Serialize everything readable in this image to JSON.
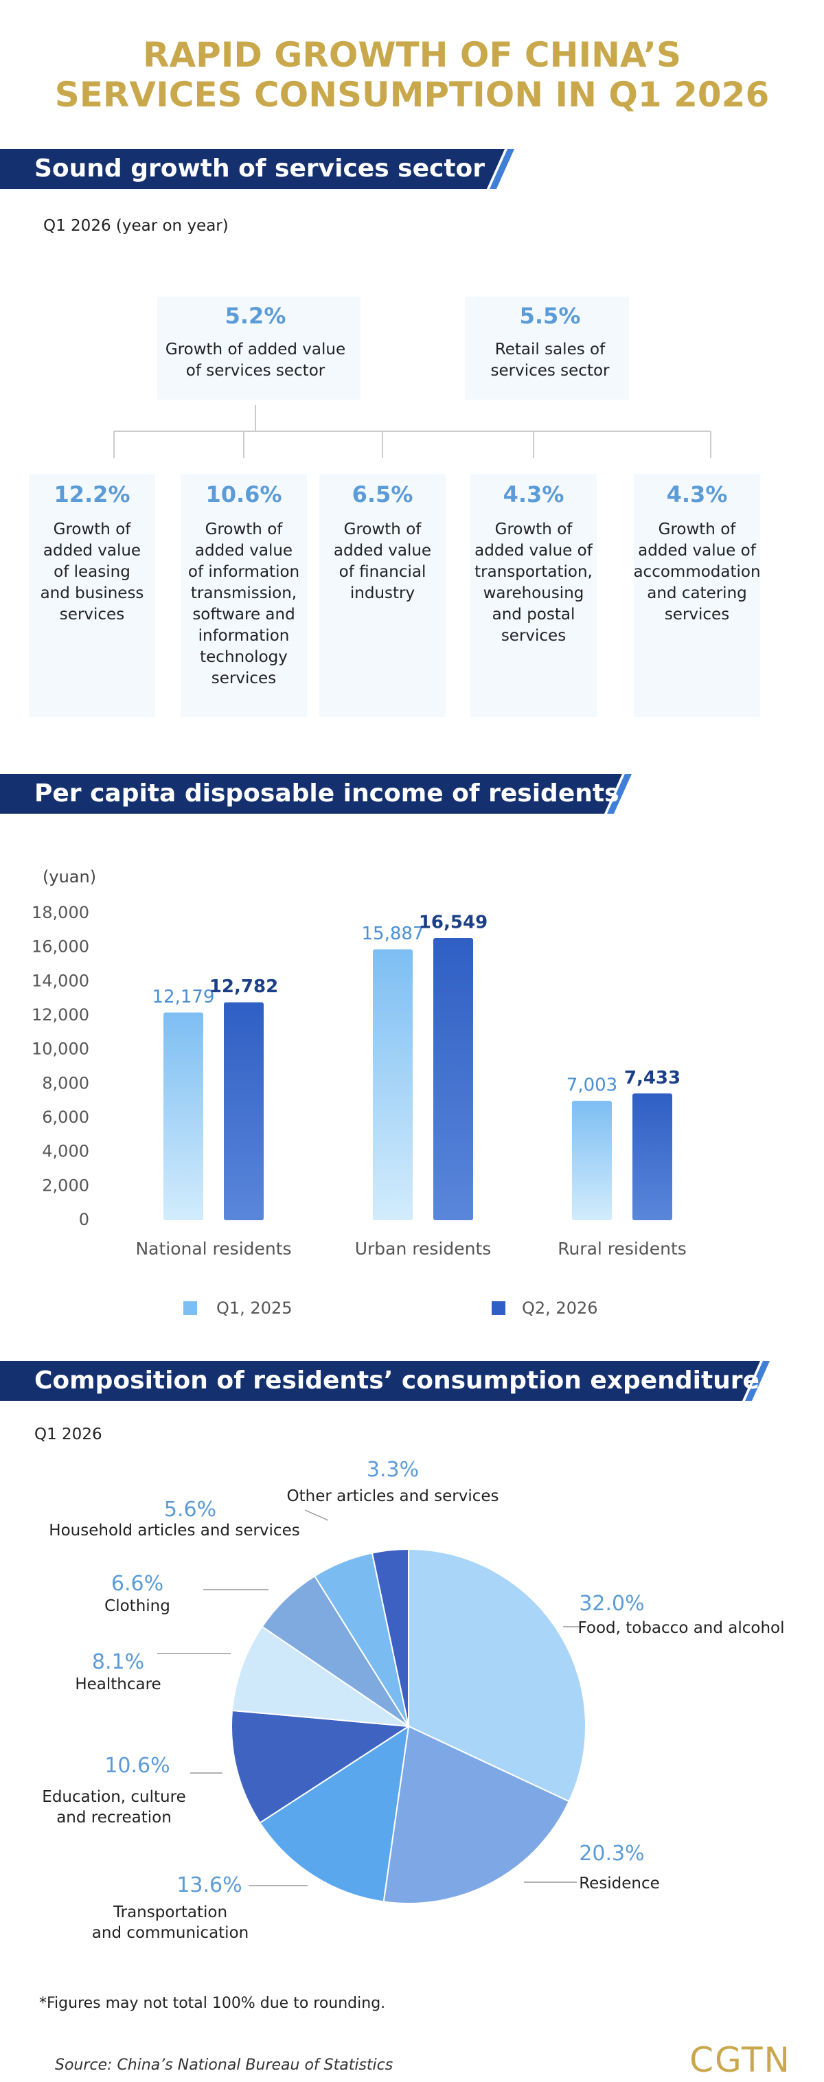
{
  "header": {
    "title_lines": [
      "RAPID GROWTH OF CHINA’S",
      "SERVICES CONSUMPTION IN Q1 2026"
    ]
  },
  "services": {
    "banner": "Sound growth of services sector",
    "subtitle": "Q1 2026 (year on year)",
    "main": [
      {
        "value": "5.2%",
        "label": "Growth of added value\nof services sector"
      },
      {
        "value": "5.5%",
        "label": "Retail sales of\nservices sector"
      }
    ],
    "items": [
      {
        "value": "12.2%",
        "label": "Growth of\nadded value\nof leasing\nand business\nservices"
      },
      {
        "value": "10.6%",
        "label": "Growth of\nadded value\nof information\ntransmission,\nsoftware and\ninformation\ntechnology\nservices"
      },
      {
        "value": "6.5%",
        "label": "Growth of\nadded value\nof financial\nindustry"
      },
      {
        "value": "4.3%",
        "label": "Growth of\nadded value of\ntransportation,\nwarehousing\nand postal\nservices"
      },
      {
        "value": "4.3%",
        "label": "Growth of\nadded value of\naccommodation\nand catering\nservices"
      }
    ]
  },
  "chart_data": [
    {
      "type": "bar",
      "title": "Per capita disposable income of residents",
      "y_label": "(yuan)",
      "categories": [
        "National residents",
        "Urban residents",
        "Rural residents"
      ],
      "series": [
        {
          "name": "Q1, 2025",
          "color": "#7dbef3",
          "values": [
            12179,
            15887,
            7003
          ],
          "value_labels": [
            "12,179",
            "15,887",
            "7,003"
          ]
        },
        {
          "name": "Q2, 2026",
          "color": "#2f5fc4",
          "values": [
            12782,
            16549,
            7433
          ],
          "value_labels": [
            "12,782",
            "16,549",
            "7,433"
          ]
        }
      ],
      "ylim": [
        0,
        18000
      ],
      "yticks": [
        0,
        {
          "value": 2000,
          "label": "2,000"
        },
        {
          "value": 4000,
          "label": "4,000"
        },
        {
          "value": 6000,
          "label": "6,000"
        },
        {
          "value": 8000,
          "label": "8,000"
        },
        {
          "value": 10000,
          "label": "10,000"
        },
        {
          "value": 12000,
          "label": "12,000"
        },
        {
          "value": 14000,
          "label": "14,000"
        },
        {
          "value": 16000,
          "label": "16,000"
        },
        {
          "value": 18000,
          "label": "18,000"
        }
      ],
      "legend": "bottom"
    },
    {
      "type": "pie",
      "title": "Composition of residents’ consumption expenditure",
      "subtitle": "Q1 2026",
      "categories": [
        "Food, tobacco and alcohol",
        "Residence",
        "Transportation\nand communication",
        "Education, culture\nand recreation",
        "Healthcare",
        "Clothing",
        "Household articles and services",
        "Other articles and services"
      ],
      "values": [
        32.0,
        20.3,
        13.6,
        10.6,
        8.1,
        6.6,
        5.6,
        3.3
      ],
      "value_labels": [
        "32.0%",
        "20.3%",
        "13.6%",
        "10.6%",
        "8.1%",
        "6.6%",
        "5.6%",
        "3.3%"
      ],
      "colors": [
        "#a9d5f9",
        "#7ea7e6",
        "#5aa7ee",
        "#3e63c1",
        "#cfe9fb",
        "#7faadf",
        "#7abcf2",
        "#3d60c3"
      ]
    }
  ],
  "footnote": "*Figures may not total 100% due to rounding.",
  "source": "Source: China’s National Bureau of Statistics",
  "logo": "CGTN"
}
